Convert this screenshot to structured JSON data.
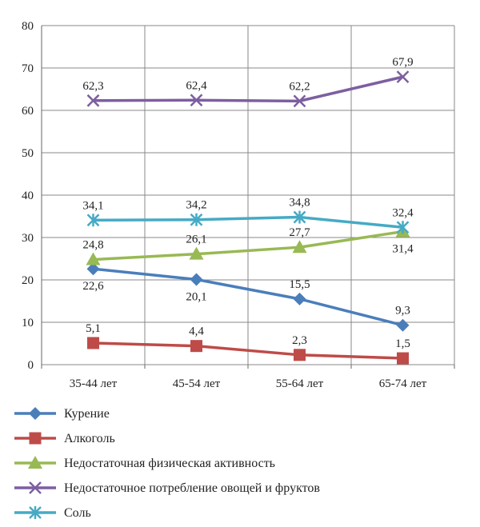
{
  "chart_data": {
    "type": "line",
    "categories": [
      "35-44 лет",
      "45-54 лет",
      "55-64 лет",
      "65-74 лет"
    ],
    "ylim": [
      0,
      80
    ],
    "yticks": [
      0,
      10,
      20,
      30,
      40,
      50,
      60,
      70,
      80
    ],
    "grid": true,
    "legend_position": "bottom",
    "series": [
      {
        "name": "Курение",
        "values": [
          22.6,
          20.1,
          15.5,
          9.3
        ],
        "labels": [
          "22,6",
          "20,1",
          "15,5",
          "9,3"
        ],
        "color": "#4a7ebb",
        "marker": "diamond"
      },
      {
        "name": "Алкоголь",
        "values": [
          5.1,
          4.4,
          2.3,
          1.5
        ],
        "labels": [
          "5,1",
          "4,4",
          "2,3",
          "1,5"
        ],
        "color": "#be4b48",
        "marker": "square"
      },
      {
        "name": "Недостаточная физическая активность",
        "values": [
          24.8,
          26.1,
          27.7,
          31.4
        ],
        "labels": [
          "24,8",
          "26,1",
          "27,7",
          "31,4"
        ],
        "color": "#98b954",
        "marker": "triangle"
      },
      {
        "name": "Недостаточное потребление овощей и фруктов",
        "values": [
          62.3,
          62.4,
          62.2,
          67.9
        ],
        "labels": [
          "62,3",
          "62,4",
          "62,2",
          "67,9"
        ],
        "color": "#7d5fa0",
        "marker": "x"
      },
      {
        "name": "Соль",
        "values": [
          34.1,
          34.2,
          34.8,
          32.4
        ],
        "labels": [
          "34,1",
          "34,2",
          "34,8",
          "32,4"
        ],
        "color": "#46aac5",
        "marker": "star"
      }
    ]
  }
}
